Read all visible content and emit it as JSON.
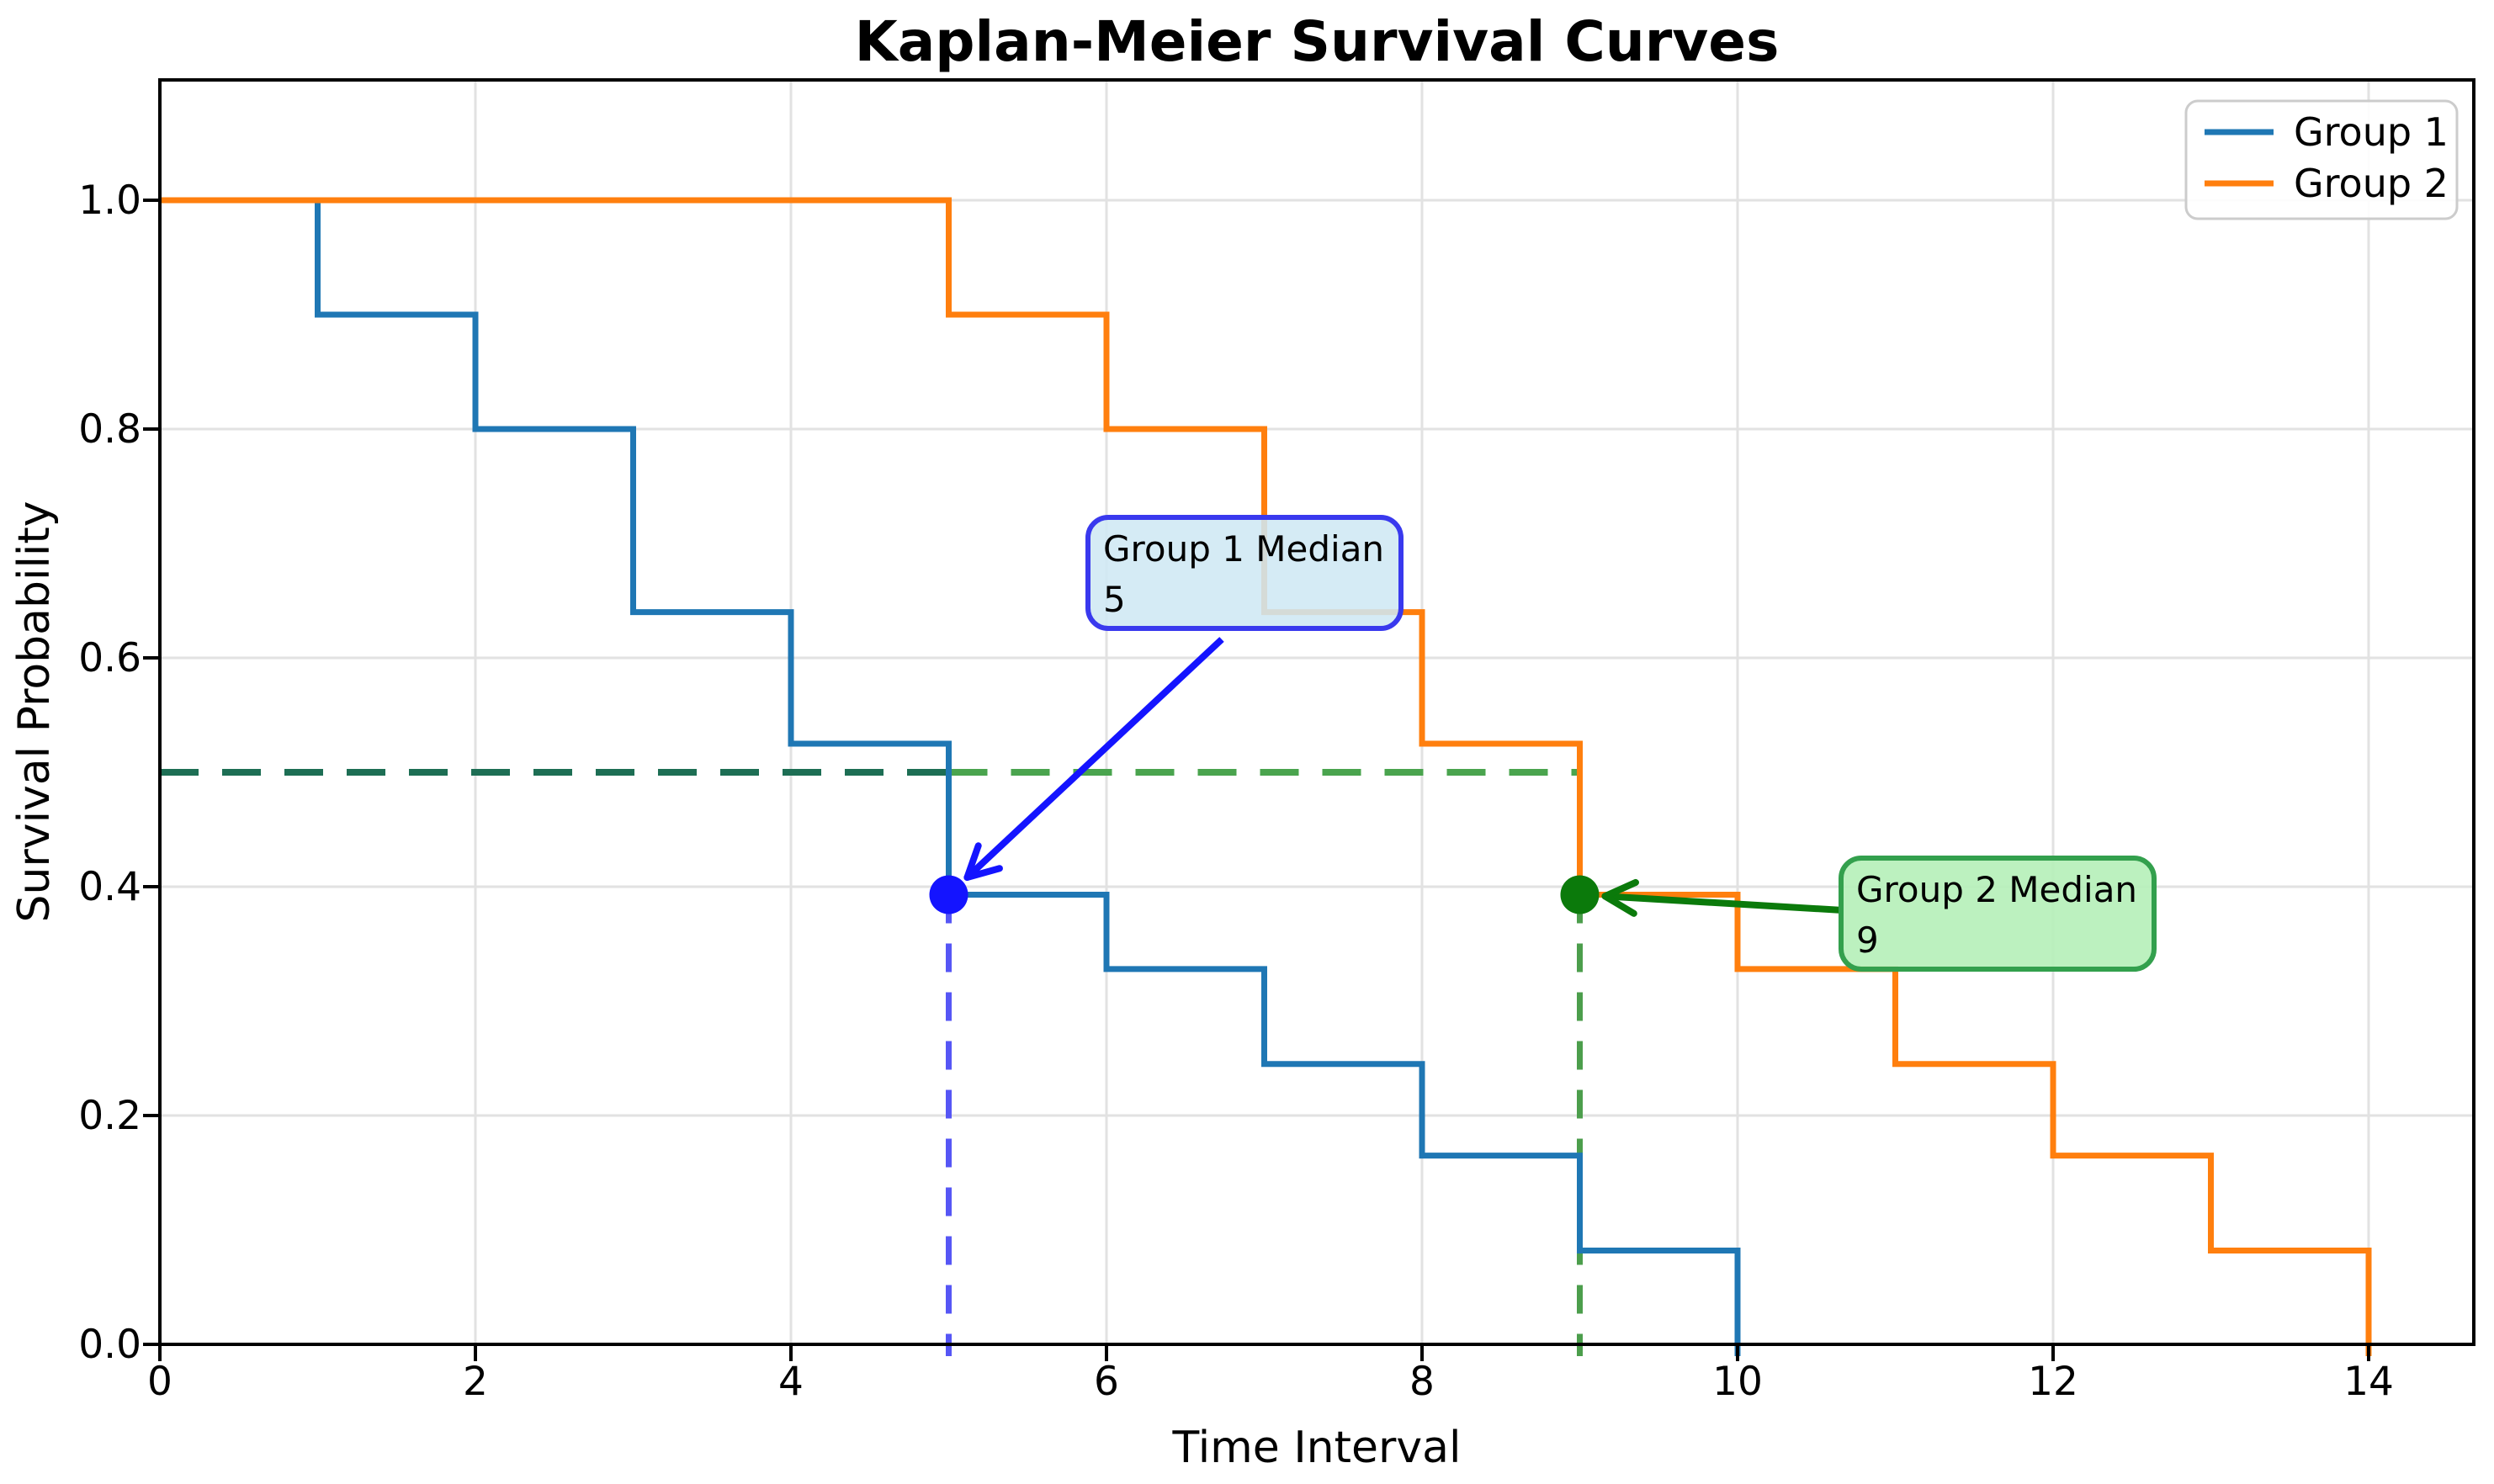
{
  "figure": {
    "title": "Kaplan-Meier Survival Curves",
    "xlabel": "Time Interval",
    "ylabel": "Survival Probability",
    "background": "#ffffff"
  },
  "legend": {
    "items": [
      {
        "label": "Group 1",
        "color": "#1f77b4"
      },
      {
        "label": "Group 2",
        "color": "#ff7f0e"
      }
    ]
  },
  "annotations": {
    "group1": {
      "line1": "Group 1 Median",
      "line2": "5",
      "box_fill": "#cfe8f4",
      "box_border": "#3939ee",
      "arrow_color": "#1414ff"
    },
    "group2": {
      "line1": "Group 2 Median",
      "line2": "9",
      "box_fill": "#b6f0ba",
      "box_border": "#33a04d",
      "arrow_color": "#0b7a0b"
    }
  },
  "chart_data": {
    "type": "line",
    "variant": "kaplan-meier-step",
    "title": "Kaplan-Meier Survival Curves",
    "xlabel": "Time Interval",
    "ylabel": "Survival Probability",
    "xlim": [
      0,
      14.7
    ],
    "ylim": [
      0,
      1.105
    ],
    "x_ticks": [
      0,
      2,
      4,
      6,
      8,
      10,
      12,
      14
    ],
    "y_ticks": [
      0.0,
      0.2,
      0.4,
      0.6,
      0.8,
      1.0
    ],
    "grid": true,
    "grid_color": "#e2e2e2",
    "legend_position": "upper right",
    "series": [
      {
        "name": "Group 1",
        "color": "#1f77b4",
        "event_times": [
          0,
          1,
          2,
          3,
          4,
          5,
          6,
          7,
          8,
          9,
          10
        ],
        "survival_probability": [
          1.0,
          0.9,
          0.8,
          0.64,
          0.525,
          0.393,
          0.328,
          0.245,
          0.165,
          0.082,
          0.0
        ],
        "median_time": 5
      },
      {
        "name": "Group 2",
        "color": "#ff7f0e",
        "event_times": [
          0,
          5,
          6,
          7,
          8,
          9,
          10,
          11,
          12,
          13,
          14
        ],
        "survival_probability": [
          1.0,
          0.9,
          0.8,
          0.64,
          0.525,
          0.393,
          0.328,
          0.245,
          0.165,
          0.082,
          0.0
        ],
        "median_time": 9
      }
    ],
    "median_markers": [
      {
        "group": "Group 1",
        "time": 5,
        "survival": 0.393,
        "dot_color": "#1414ff",
        "vline_color": "#5656f5"
      },
      {
        "group": "Group 2",
        "time": 9,
        "survival": 0.393,
        "dot_color": "#0b7a0b",
        "vline_color": "#4c9e4c"
      }
    ],
    "median_guide": {
      "probability": 0.5,
      "segments": [
        {
          "x_from": 0,
          "x_to": 5,
          "color": "#1d6e54"
        },
        {
          "x_from": 5,
          "x_to": 9,
          "color": "#4aa44e"
        }
      ]
    }
  }
}
